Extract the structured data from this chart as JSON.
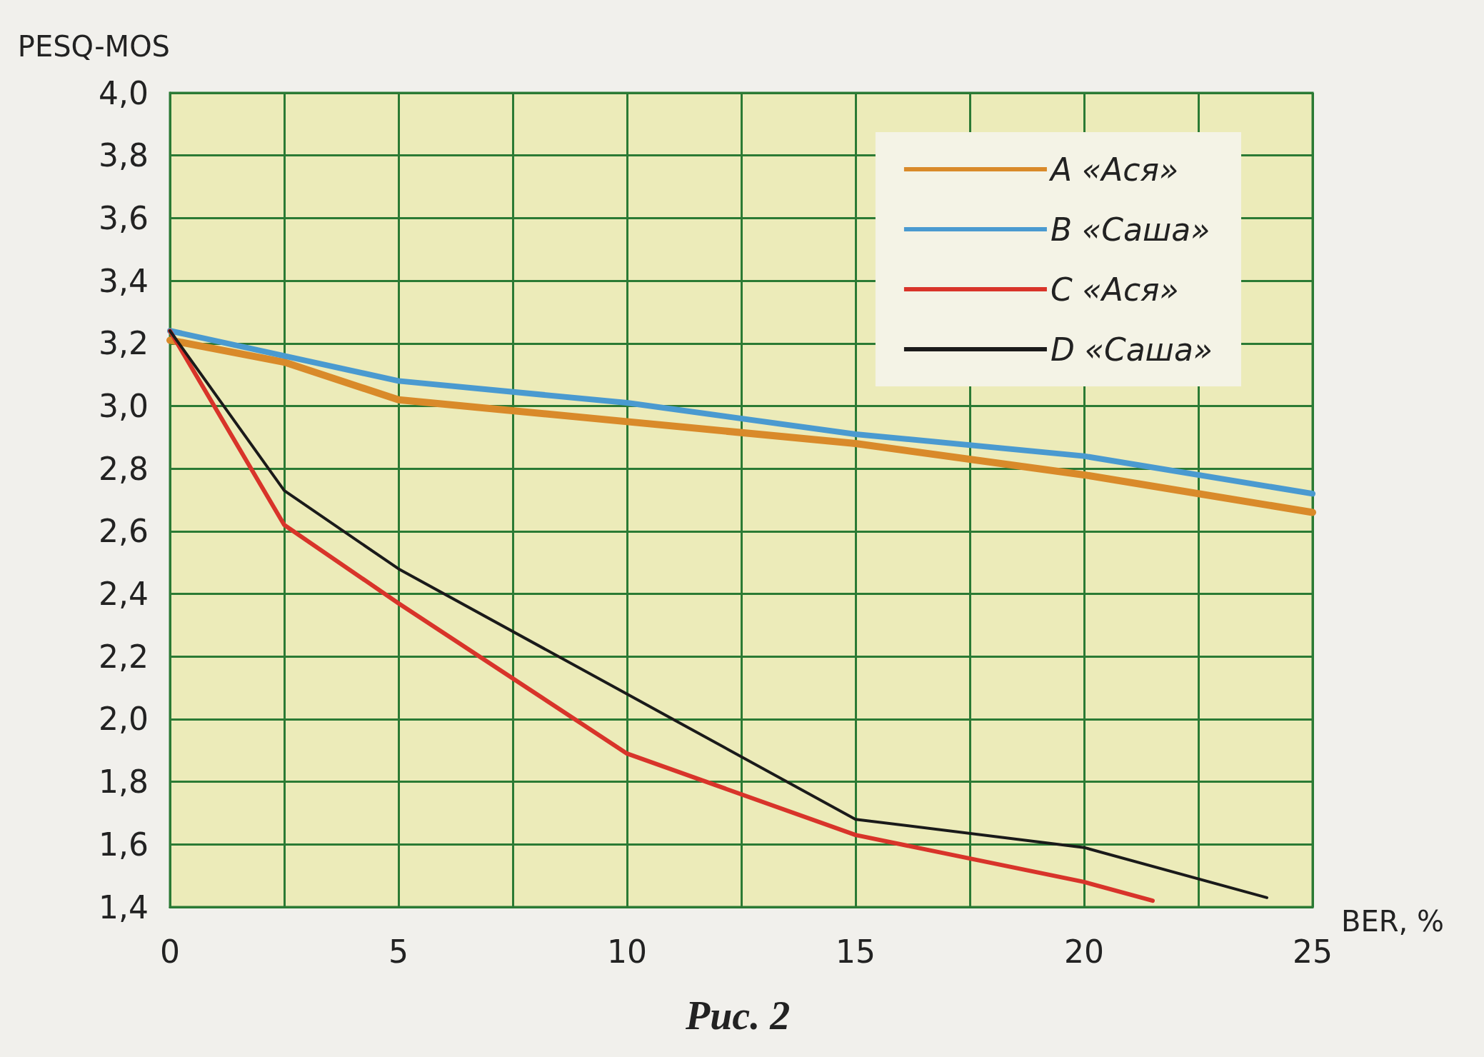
{
  "chart_data": {
    "type": "line",
    "xlabel": "BER, %",
    "ylabel": "PESQ-MOS",
    "annotations": [
      "Рис. 2"
    ],
    "xlim": [
      0,
      25
    ],
    "ylim": [
      1.4,
      4.0
    ],
    "xticks": [
      0,
      {
        "value": 2.5,
        "label": null
      },
      5,
      {
        "value": 7.5,
        "label": null
      },
      10,
      {
        "value": 12.5,
        "label": null
      },
      15,
      {
        "value": 17.5,
        "label": null
      },
      20,
      {
        "value": 22.5,
        "label": null
      },
      25
    ],
    "yticks": [
      {
        "value": 1.4,
        "label": "1,4"
      },
      {
        "value": 1.6,
        "label": "1,6"
      },
      {
        "value": 1.8,
        "label": "1,8"
      },
      {
        "value": 2.0,
        "label": "2,0"
      },
      {
        "value": 2.2,
        "label": "2,2"
      },
      {
        "value": 2.4,
        "label": "2,4"
      },
      {
        "value": 2.6,
        "label": "2,6"
      },
      {
        "value": 2.8,
        "label": "2,8"
      },
      {
        "value": 3.0,
        "label": "3,0"
      },
      {
        "value": 3.2,
        "label": "3,2"
      },
      {
        "value": 3.4,
        "label": "3,4"
      },
      {
        "value": 3.6,
        "label": "3,6"
      },
      {
        "value": 3.8,
        "label": "3,8"
      },
      {
        "value": 4.0,
        "label": "4,0"
      }
    ],
    "grid": true,
    "legend": "top right",
    "marker": "none",
    "line_style": "solid",
    "series": [
      {
        "name": "A «Ася»",
        "color": "#d98a2a",
        "x": [
          0,
          2.5,
          5,
          10,
          15,
          20,
          25
        ],
        "values": [
          3.21,
          3.14,
          3.02,
          2.95,
          2.88,
          2.78,
          2.66
        ]
      },
      {
        "name": "B «Саша»",
        "color": "#4a9ad0",
        "x": [
          0,
          5,
          10,
          15,
          20,
          25
        ],
        "values": [
          3.24,
          3.08,
          3.01,
          2.91,
          2.84,
          2.72
        ]
      },
      {
        "name": "C «Ася»",
        "color": "#d8342a",
        "x": [
          0,
          2.5,
          5,
          10,
          15,
          20,
          21.5
        ],
        "values": [
          3.24,
          2.62,
          2.37,
          1.89,
          1.63,
          1.48,
          1.42
        ]
      },
      {
        "name": "D «Саша»",
        "color": "#1a1a1a",
        "x": [
          0,
          2.5,
          5,
          10,
          15,
          20,
          24
        ],
        "values": [
          3.24,
          2.73,
          2.48,
          2.08,
          1.68,
          1.59,
          1.43
        ]
      }
    ]
  }
}
